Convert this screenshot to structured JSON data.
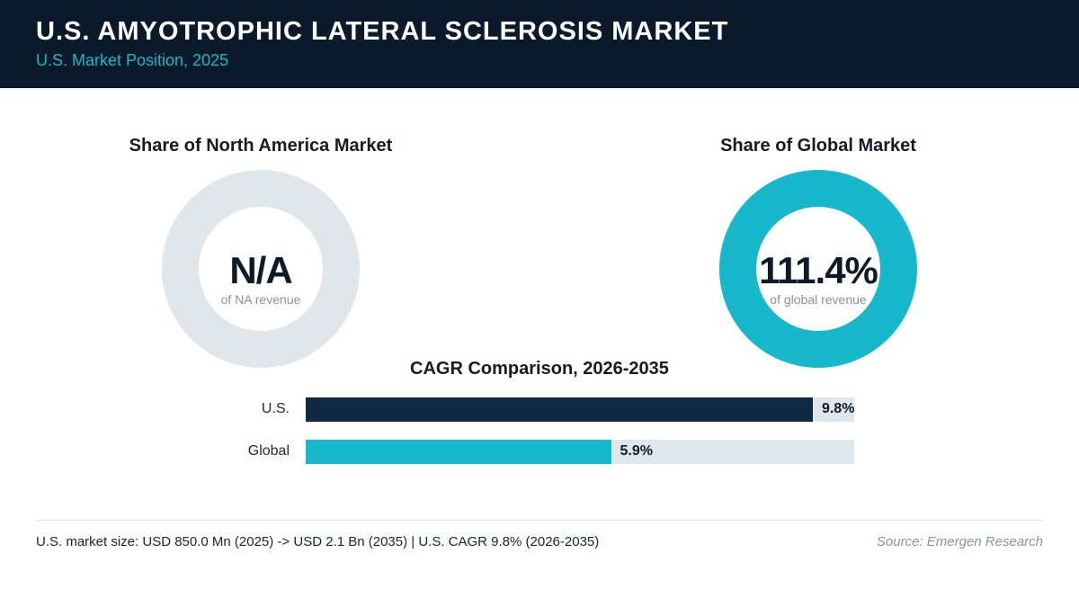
{
  "header": {
    "title": "U.S. AMYOTROPHIC LATERAL SCLEROSIS MARKET",
    "subtitle": "U.S. Market Position, 2025"
  },
  "chart_data": [
    {
      "type": "pie",
      "title": "Share of North America Market",
      "center_value": "N/A",
      "center_caption": "of NA revenue",
      "value": null,
      "colors": {
        "track": "#e1e6ea",
        "fill": "#18b8cc"
      }
    },
    {
      "type": "pie",
      "title": "Share of Global Market",
      "center_value": "111.4%",
      "center_caption": "of global revenue",
      "value": 111.4,
      "colors": {
        "track": "#e1e6ea",
        "fill": "#18b8cc"
      }
    },
    {
      "type": "bar",
      "title": "CAGR Comparison, 2026-2035",
      "orientation": "horizontal",
      "categories": [
        "U.S.",
        "Global"
      ],
      "values": [
        9.8,
        5.9
      ],
      "value_labels": [
        "9.8%",
        "5.9%"
      ],
      "xlim": [
        0,
        10.6
      ],
      "colors": [
        "#0f2a42",
        "#18b8cc"
      ],
      "track_color": "#e1e6ea"
    }
  ],
  "footer": {
    "note": "U.S. market size: USD 850.0 Mn (2025) -> USD 2.1 Bn (2035)  |  U.S. CAGR 9.8% (2026-2035)",
    "source": "Source: Emergen Research"
  }
}
